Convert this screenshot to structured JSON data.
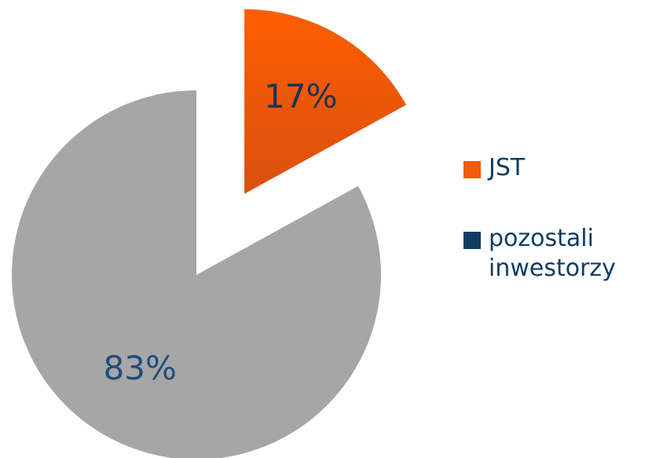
{
  "chart_data": {
    "type": "pie",
    "categories": [
      "JST",
      "pozostali inwestorzy"
    ],
    "values": [
      17,
      83
    ],
    "value_labels": [
      "17%",
      "83%"
    ],
    "colors": [
      "#f45a0c",
      "#a6a6a6"
    ],
    "legend_colors": [
      "#f45a0c",
      "#0f3d62"
    ],
    "label_colors": [
      "#1c3550",
      "#1f4e79"
    ],
    "legend": "right"
  }
}
